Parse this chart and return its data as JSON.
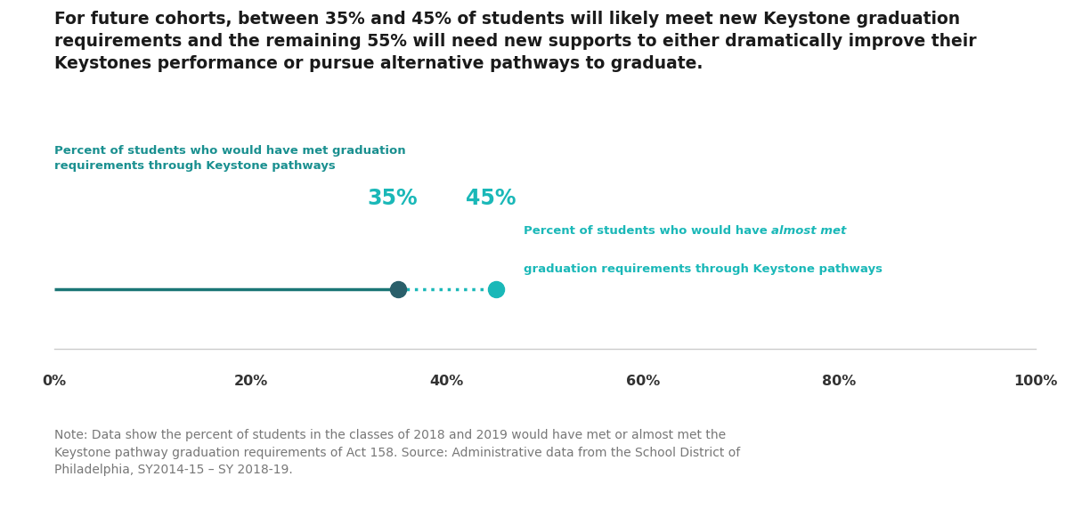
{
  "title_text": "For future cohorts, between 35% and 45% of students will likely meet new Keystone graduation\nrequirements and the remaining 55% will need new supports to either dramatically improve their\nKeystones performance or pursue alternative pathways to graduate.",
  "title_fontsize": 13.5,
  "title_color": "#1a1a1a",
  "line_color": "#1a7575",
  "dot_filled_color": "#2a5f6a",
  "dot_open_color": "#1ab8b8",
  "value_35": 35,
  "value_45": 45,
  "xmin": 0,
  "xmax": 100,
  "xticks": [
    0,
    20,
    40,
    60,
    80,
    100
  ],
  "xticklabels": [
    "0%",
    "20%",
    "40%",
    "60%",
    "80%",
    "100%"
  ],
  "label_left_line1": "Percent of students who would have met graduation",
  "label_left_line2": "requirements through Keystone pathways",
  "label_left_color": "#1a9090",
  "label_right_prefix": "Percent of students who would have ",
  "label_right_italic": "almost met",
  "label_right_line2": "graduation requirements through Keystone pathways",
  "label_right_color": "#1ab8b8",
  "label_35_text": "35%",
  "label_45_text": "45%",
  "label_pct_color": "#1ab8b8",
  "label_pct_fontsize": 17,
  "label_annot_fontsize": 9.5,
  "note_text": "Note: Data show the percent of students in the classes of 2018 and 2019 would have met or almost met the\nKeystone pathway graduation requirements of Act 158. Source: Administrative data from the School District of\nPhiladelphia, SY2014-15 – SY 2018-19.",
  "note_color": "#777777",
  "note_fontsize": 10,
  "bg_color": "#ffffff",
  "separator_color": "#cccccc",
  "tick_fontsize": 11.5,
  "tick_color": "#333333"
}
